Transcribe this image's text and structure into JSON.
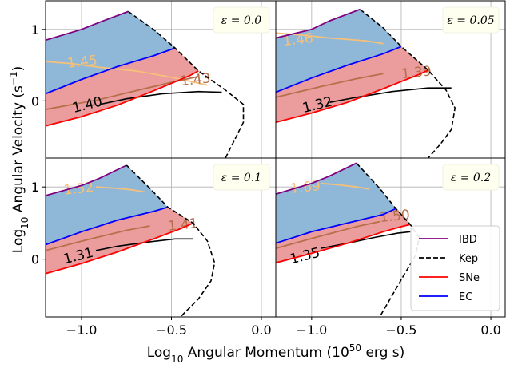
{
  "chart_data": {
    "type": "area",
    "xlabel": "Log$_{10}$ Angular Momentum (10$^{50}$ erg s)",
    "xlabel_parts": [
      "Log",
      "10",
      " Angular Momentum (10",
      "50",
      " erg s)"
    ],
    "ylabel_parts": [
      "Log",
      "10",
      " Angular Velocity (s",
      "−1",
      ")"
    ],
    "xlim": [
      -1.2,
      0.08
    ],
    "ylim": [
      -0.8,
      1.4
    ],
    "x_ticks": [
      -1.0,
      -0.5,
      0.0
    ],
    "x_tick_labels": [
      "−1.0",
      "−0.5",
      "0.0"
    ],
    "y_ticks": [
      0,
      1
    ],
    "y_tick_labels": [
      "0",
      "1"
    ],
    "grid": true,
    "legend": {
      "location": "lower right of bottom-right panel",
      "entries": [
        {
          "label": "IBD",
          "color": "#800080",
          "style": "solid"
        },
        {
          "label": "Kep",
          "color": "#000000",
          "style": "dashed"
        },
        {
          "label": "SNe",
          "color": "#ff0000",
          "style": "solid"
        },
        {
          "label": "EC",
          "color": "#0000ff",
          "style": "solid"
        }
      ]
    },
    "colors": {
      "ibd": "#800080",
      "kep": "#000000",
      "sne": "#ff0000",
      "ec": "#0000ff",
      "blue_fill": "#8fb8d8",
      "red_fill": "#eb9c9c",
      "contour_light": "#f5c07a",
      "contour_mid": "#b5704a",
      "contour_dark": "#000000",
      "eps_box": "#fffff0"
    },
    "panels": [
      {
        "epsilon": "ε = 0.0",
        "ibd": [
          [
            -1.2,
            0.85
          ],
          [
            -1.0,
            1.0
          ],
          [
            -0.9,
            1.1
          ],
          [
            -0.74,
            1.25
          ]
        ],
        "ec": [
          [
            -1.2,
            0.1
          ],
          [
            -1.0,
            0.3
          ],
          [
            -0.8,
            0.48
          ],
          [
            -0.6,
            0.63
          ],
          [
            -0.48,
            0.74
          ]
        ],
        "sne": [
          [
            -1.2,
            -0.35
          ],
          [
            -1.0,
            -0.22
          ],
          [
            -0.8,
            -0.06
          ],
          [
            -0.6,
            0.14
          ],
          [
            -0.4,
            0.35
          ],
          [
            -0.35,
            0.42
          ]
        ],
        "kep": [
          [
            -0.74,
            1.25
          ],
          [
            -0.6,
            1.0
          ],
          [
            -0.48,
            0.74
          ],
          [
            -0.35,
            0.42
          ],
          [
            -0.2,
            0.15
          ],
          [
            -0.1,
            -0.05
          ],
          [
            -0.1,
            -0.3
          ],
          [
            -0.15,
            -0.55
          ],
          [
            -0.2,
            -0.8
          ]
        ],
        "contours": [
          {
            "label": "1.45",
            "level": 1.45,
            "color": "light",
            "points": [
              [
                -1.2,
                0.55
              ],
              [
                -1.05,
                0.52
              ],
              [
                -0.9,
                0.47
              ],
              [
                -0.7,
                0.42
              ],
              [
                -0.5,
                0.33
              ],
              [
                -0.3,
                0.22
              ]
            ],
            "label_at": [
              -1.08,
              0.53
            ]
          },
          {
            "label": "1.43",
            "level": 1.43,
            "color": "mid",
            "points": [
              [
                -1.2,
                -0.12
              ],
              [
                -0.9,
                0.02
              ],
              [
                -0.7,
                0.14
              ],
              [
                -0.5,
                0.26
              ],
              [
                -0.35,
                0.34
              ]
            ],
            "label_at": [
              -0.45,
              0.28
            ]
          },
          {
            "label": "1.40",
            "level": 1.4,
            "color": "dark",
            "points": [
              [
                -0.9,
                -0.05
              ],
              [
                -0.75,
                0.03
              ],
              [
                -0.55,
                0.1
              ],
              [
                -0.35,
                0.13
              ],
              [
                -0.22,
                0.12
              ]
            ],
            "label_at": [
              -1.05,
              -0.1
            ]
          }
        ]
      },
      {
        "epsilon": "ε = 0.05",
        "ibd": [
          [
            -1.2,
            0.88
          ],
          [
            -1.0,
            1.0
          ],
          [
            -0.9,
            1.12
          ],
          [
            -0.73,
            1.28
          ]
        ],
        "ec": [
          [
            -1.2,
            0.12
          ],
          [
            -1.0,
            0.32
          ],
          [
            -0.8,
            0.5
          ],
          [
            -0.6,
            0.66
          ],
          [
            -0.5,
            0.76
          ]
        ],
        "sne": [
          [
            -1.2,
            -0.3
          ],
          [
            -1.0,
            -0.17
          ],
          [
            -0.8,
            -0.02
          ],
          [
            -0.6,
            0.17
          ],
          [
            -0.4,
            0.37
          ],
          [
            -0.35,
            0.43
          ]
        ],
        "kep": [
          [
            -0.73,
            1.28
          ],
          [
            -0.6,
            1.02
          ],
          [
            -0.5,
            0.76
          ],
          [
            -0.35,
            0.43
          ],
          [
            -0.25,
            0.15
          ],
          [
            -0.2,
            -0.1
          ],
          [
            -0.22,
            -0.4
          ],
          [
            -0.28,
            -0.6
          ],
          [
            -0.35,
            -0.8
          ]
        ],
        "contours": [
          {
            "label": "1.46",
            "level": 1.46,
            "color": "light",
            "points": [
              [
                -1.2,
                0.95
              ],
              [
                -1.05,
                0.92
              ],
              [
                -0.9,
                0.88
              ],
              [
                -0.7,
                0.84
              ],
              [
                -0.6,
                0.8
              ]
            ],
            "label_at": [
              -1.16,
              0.84
            ]
          },
          {
            "label": "1.39",
            "level": 1.39,
            "color": "mid",
            "points": [
              [
                -1.2,
                0.05
              ],
              [
                -0.95,
                0.2
              ],
              [
                -0.75,
                0.31
              ],
              [
                -0.6,
                0.38
              ]
            ],
            "label_at": [
              -0.5,
              0.38
            ]
          },
          {
            "label": "1.32",
            "level": 1.32,
            "color": "dark",
            "points": [
              [
                -0.9,
                -0.02
              ],
              [
                -0.75,
                0.05
              ],
              [
                -0.55,
                0.13
              ],
              [
                -0.35,
                0.18
              ],
              [
                -0.22,
                0.18
              ]
            ],
            "label_at": [
              -1.05,
              -0.1
            ]
          }
        ]
      },
      {
        "epsilon": "ε = 0.1",
        "ibd": [
          [
            -1.2,
            0.88
          ],
          [
            -1.0,
            1.02
          ],
          [
            -0.9,
            1.12
          ],
          [
            -0.75,
            1.3
          ]
        ],
        "ec": [
          [
            -1.2,
            0.2
          ],
          [
            -1.0,
            0.38
          ],
          [
            -0.8,
            0.54
          ],
          [
            -0.6,
            0.66
          ],
          [
            -0.52,
            0.72
          ]
        ],
        "sne": [
          [
            -1.2,
            -0.2
          ],
          [
            -1.0,
            -0.06
          ],
          [
            -0.8,
            0.1
          ],
          [
            -0.6,
            0.28
          ],
          [
            -0.45,
            0.42
          ],
          [
            -0.38,
            0.5
          ]
        ],
        "kep": [
          [
            -0.75,
            1.3
          ],
          [
            -0.62,
            0.98
          ],
          [
            -0.52,
            0.72
          ],
          [
            -0.38,
            0.5
          ],
          [
            -0.3,
            0.25
          ],
          [
            -0.26,
            -0.05
          ],
          [
            -0.28,
            -0.3
          ],
          [
            -0.35,
            -0.55
          ],
          [
            -0.45,
            -0.8
          ]
        ],
        "contours": [
          {
            "label": "1.52",
            "level": 1.52,
            "color": "light",
            "points": [
              [
                -0.92,
                1.0
              ],
              [
                -0.8,
                0.98
              ],
              [
                -0.72,
                0.96
              ],
              [
                -0.65,
                0.93
              ]
            ],
            "label_at": [
              -1.1,
              0.96
            ]
          },
          {
            "label": "1.41",
            "level": 1.41,
            "color": "mid",
            "points": [
              [
                -1.2,
                0.12
              ],
              [
                -0.95,
                0.28
              ],
              [
                -0.75,
                0.4
              ],
              [
                -0.62,
                0.46
              ]
            ],
            "label_at": [
              -0.52,
              0.46
            ]
          },
          {
            "label": "1.31",
            "level": 1.31,
            "color": "dark",
            "points": [
              [
                -0.92,
                0.12
              ],
              [
                -0.8,
                0.18
              ],
              [
                -0.62,
                0.24
              ],
              [
                -0.48,
                0.28
              ],
              [
                -0.38,
                0.28
              ]
            ],
            "label_at": [
              -1.1,
              0.0
            ]
          }
        ]
      },
      {
        "epsilon": "ε = 0.2",
        "ibd": [
          [
            -1.2,
            0.9
          ],
          [
            -1.0,
            1.05
          ],
          [
            -0.9,
            1.15
          ],
          [
            -0.75,
            1.33
          ]
        ],
        "ec": [
          [
            -1.2,
            0.22
          ],
          [
            -1.0,
            0.38
          ],
          [
            -0.8,
            0.5
          ],
          [
            -0.6,
            0.62
          ],
          [
            -0.53,
            0.7
          ]
        ],
        "sne": [
          [
            -1.2,
            -0.05
          ],
          [
            -1.0,
            0.08
          ],
          [
            -0.8,
            0.22
          ],
          [
            -0.6,
            0.38
          ],
          [
            -0.5,
            0.45
          ],
          [
            -0.45,
            0.48
          ]
        ],
        "kep": [
          [
            -0.75,
            1.33
          ],
          [
            -0.62,
            0.98
          ],
          [
            -0.53,
            0.7
          ],
          [
            -0.45,
            0.48
          ],
          [
            -0.4,
            0.3
          ],
          [
            -0.42,
            0.05
          ],
          [
            -0.48,
            -0.2
          ],
          [
            -0.55,
            -0.5
          ],
          [
            -0.62,
            -0.8
          ]
        ],
        "contours": [
          {
            "label": "1.69",
            "level": 1.69,
            "color": "light",
            "points": [
              [
                -0.95,
                1.05
              ],
              [
                -0.85,
                1.03
              ],
              [
                -0.75,
                1.0
              ],
              [
                -0.68,
                0.97
              ]
            ],
            "label_at": [
              -1.12,
              0.98
            ]
          },
          {
            "label": "1.50",
            "level": 1.5,
            "color": "mid",
            "points": [
              [
                -1.2,
                0.15
              ],
              [
                -0.95,
                0.32
              ],
              [
                -0.75,
                0.45
              ],
              [
                -0.62,
                0.52
              ]
            ],
            "label_at": [
              -0.62,
              0.58
            ]
          },
          {
            "label": "1.35",
            "level": 1.35,
            "color": "dark",
            "points": [
              [
                -0.95,
                0.15
              ],
              [
                -0.8,
                0.22
              ],
              [
                -0.65,
                0.3
              ],
              [
                -0.52,
                0.36
              ],
              [
                -0.45,
                0.38
              ]
            ],
            "label_at": [
              -1.12,
              0.0
            ]
          }
        ]
      }
    ]
  }
}
